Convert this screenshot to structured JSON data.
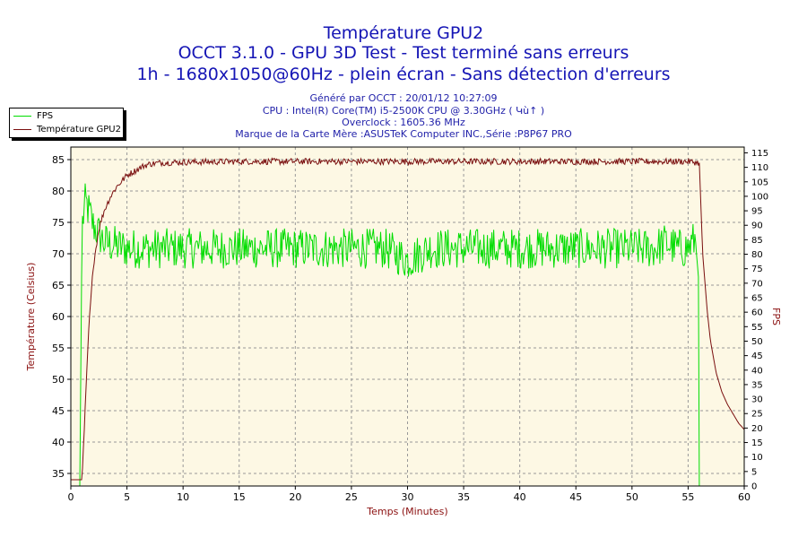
{
  "chart_data": {
    "type": "line",
    "title": "Température GPU2",
    "subtitle_lines": [
      "OCCT 3.1.0 - GPU 3D Test - Test terminé sans erreurs",
      "1h - 1680x1050@60Hz - plein écran - Sans détection d'erreurs"
    ],
    "info_lines": [
      "Généré par OCCT : 20/01/12 10:27:09",
      "CPU : Intel(R) Core(TM) i5-2500K CPU @ 3.30GHz ( Կù↑ )",
      "Overclock : 1605.36 MHz",
      "Marque de la Carte Mère :ASUSTeK Computer INC.,Série :P8P67 PRO"
    ],
    "xlabel": "Temps (Minutes)",
    "ylabel": "Température (Celsius)",
    "y2label": "FPS",
    "xlim": [
      0,
      60
    ],
    "ylim": [
      33,
      87
    ],
    "y2lim": [
      0,
      117
    ],
    "xticks": [
      0,
      5,
      10,
      15,
      20,
      25,
      30,
      35,
      40,
      45,
      50,
      55,
      60
    ],
    "yticks": [
      35,
      40,
      45,
      50,
      55,
      60,
      65,
      70,
      75,
      80,
      85
    ],
    "y2ticks": [
      0,
      5,
      10,
      15,
      20,
      25,
      30,
      35,
      40,
      45,
      50,
      55,
      60,
      65,
      70,
      75,
      80,
      85,
      90,
      95,
      100,
      105,
      110,
      115
    ],
    "grid": true,
    "legend_position": "top-left",
    "background_color": "#fdf8e4",
    "series": [
      {
        "name": "FPS",
        "color": "#00dd00",
        "axis": "right",
        "x": [
          0.0,
          0.8,
          1.0,
          1.3,
          1.6,
          2.0,
          2.5,
          3.0,
          4.0,
          5.0,
          6.0,
          8.0,
          10.0,
          12.0,
          14.0,
          16.0,
          18.0,
          20.0,
          22.0,
          24.0,
          26.0,
          28.0,
          30.0,
          32.0,
          34.0,
          36.0,
          38.0,
          40.0,
          42.0,
          44.0,
          46.0,
          48.0,
          50.0,
          52.0,
          53.0,
          54.0,
          55.0,
          55.6,
          55.9,
          56.0,
          60.0
        ],
        "values": [
          0,
          0,
          90,
          98,
          95,
          90,
          87,
          84,
          83,
          82,
          82,
          82,
          82,
          82,
          82,
          82,
          82,
          82,
          82,
          82,
          82,
          82,
          78,
          82,
          82,
          82,
          82,
          82,
          82,
          82,
          82,
          82,
          82,
          82,
          84,
          82,
          82,
          85,
          82,
          0,
          0
        ],
        "jitter": 7
      },
      {
        "name": "Température GPU2",
        "color": "#7a0f0f",
        "axis": "left",
        "x": [
          0.0,
          1.0,
          1.3,
          1.6,
          2.0,
          2.5,
          3.0,
          3.5,
          4.0,
          4.5,
          5.0,
          5.5,
          6.0,
          6.5,
          7.0,
          8.0,
          10.0,
          15.0,
          20.0,
          25.0,
          30.0,
          35.0,
          40.0,
          45.0,
          50.0,
          55.0,
          56.0,
          56.3,
          56.7,
          57.0,
          57.5,
          58.0,
          58.5,
          59.0,
          59.5,
          60.0
        ],
        "values": [
          34,
          34,
          46,
          58,
          68,
          74,
          77,
          79,
          80.5,
          81.5,
          82.5,
          83,
          83.5,
          84,
          84.3,
          84.5,
          84.6,
          84.7,
          84.7,
          84.7,
          84.7,
          84.7,
          84.7,
          84.7,
          84.7,
          84.7,
          84.5,
          70,
          61,
          56,
          51,
          48,
          46,
          44.5,
          43,
          42
        ],
        "jitter": 0.5
      }
    ]
  }
}
